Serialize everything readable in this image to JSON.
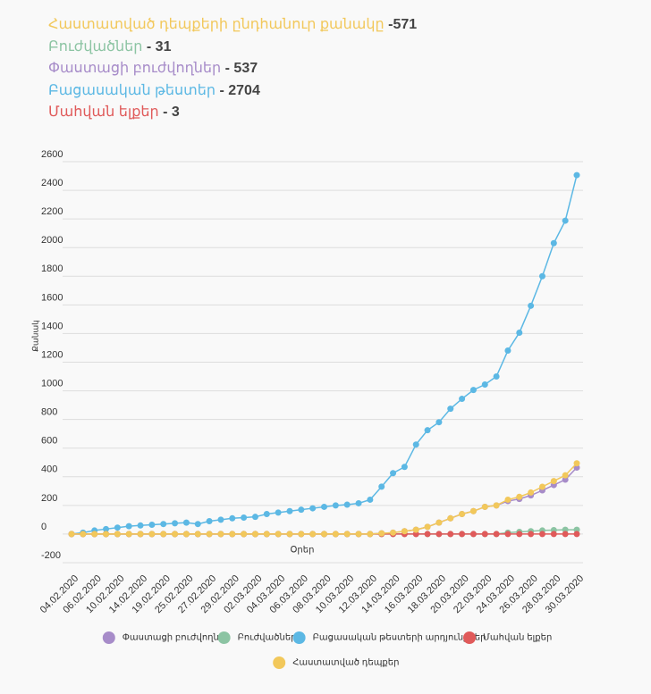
{
  "stats": [
    {
      "label": "Հաստատված դեպքերի ընդհանուր քանակը",
      "value": "-571",
      "color": "#f2c85b"
    },
    {
      "label": "Բուժվածներ",
      "value": "- 31",
      "color": "#8cc4a3"
    },
    {
      "label": "Փաստացի բուժվողներ",
      "value": "- 537",
      "color": "#a78cc9"
    },
    {
      "label": "Բացասական թեստեր",
      "value": "- 2704",
      "color": "#5cb8e4"
    },
    {
      "label": "Մահվան ելքեր",
      "value": "- 3",
      "color": "#e05a5a"
    }
  ],
  "chart_data": {
    "type": "line",
    "y_label": "Քանակ",
    "x_label": "Օրեր",
    "categories": [
      "04.02.2020",
      null,
      "06.02.2020",
      null,
      "10.02.2020",
      null,
      "14.02.2020",
      null,
      "19.02.2020",
      null,
      "25.02.2020",
      null,
      "27.02.2020",
      null,
      "29.02.2020",
      null,
      "02.03.2020",
      null,
      "04.03.2020",
      null,
      "06.03.2020",
      null,
      "08.03.2020",
      null,
      "10.03.2020",
      null,
      "12.03.2020",
      null,
      "14.03.2020",
      null,
      "16.03.2020",
      null,
      "18.03.2020",
      null,
      "20.03.2020",
      null,
      "22.03.2020",
      null,
      "24.03.2020",
      null,
      "26.03.2020",
      null,
      "28.03.2020",
      null,
      "30.03.2020"
    ],
    "ylim": [
      -200,
      2600
    ],
    "yticks": [
      -200,
      0,
      200,
      400,
      600,
      800,
      1000,
      1200,
      1400,
      1600,
      1800,
      2000,
      2200,
      2400,
      2600
    ],
    "grid": true,
    "series": [
      {
        "name": "Փաստացի բուժվողներ",
        "color": "#a78cc9",
        "values": [
          0,
          0,
          0,
          0,
          0,
          0,
          0,
          0,
          0,
          0,
          0,
          0,
          0,
          0,
          0,
          0,
          0,
          0,
          0,
          0,
          0,
          0,
          0,
          0,
          0,
          0,
          0,
          5,
          10,
          20,
          30,
          50,
          80,
          110,
          140,
          160,
          190,
          200,
          230,
          245,
          270,
          305,
          342,
          380,
          464
        ]
      },
      {
        "name": "Բուժվածներ",
        "color": "#8cc4a3",
        "values": [
          0,
          0,
          0,
          0,
          0,
          0,
          0,
          0,
          0,
          0,
          0,
          0,
          0,
          0,
          0,
          0,
          0,
          0,
          0,
          0,
          0,
          0,
          0,
          0,
          0,
          0,
          0,
          0,
          0,
          0,
          0,
          0,
          0,
          0,
          0,
          0,
          0,
          0,
          10,
          15,
          20,
          25,
          28,
          30,
          30
        ]
      },
      {
        "name": "Բացասական թեստերի արդյունքներ",
        "color": "#5cb8e4",
        "values": [
          0,
          10,
          25,
          35,
          45,
          55,
          60,
          65,
          70,
          75,
          80,
          70,
          90,
          100,
          110,
          115,
          120,
          140,
          150,
          160,
          170,
          180,
          190,
          200,
          205,
          215,
          240,
          331,
          425,
          469,
          625,
          725,
          781,
          875,
          944,
          1006,
          1044,
          1100,
          1281,
          1406,
          1594,
          1800,
          2031,
          2188,
          2506
        ]
      },
      {
        "name": "Մահվան ելքեր",
        "color": "#e05a5a",
        "values": [
          0,
          0,
          0,
          0,
          0,
          0,
          0,
          0,
          0,
          0,
          0,
          0,
          0,
          0,
          0,
          0,
          0,
          0,
          0,
          0,
          0,
          0,
          0,
          0,
          0,
          0,
          0,
          0,
          0,
          0,
          0,
          0,
          0,
          0,
          0,
          0,
          0,
          0,
          0,
          0,
          0,
          0,
          0,
          0,
          0
        ]
      },
      {
        "name": "Հաստատված դեպքեր",
        "color": "#f2c85b",
        "values": [
          0,
          0,
          0,
          0,
          0,
          0,
          0,
          0,
          0,
          0,
          0,
          0,
          0,
          0,
          0,
          0,
          0,
          0,
          0,
          0,
          0,
          0,
          0,
          0,
          0,
          0,
          0,
          5,
          10,
          20,
          30,
          50,
          80,
          110,
          140,
          160,
          190,
          200,
          240,
          260,
          290,
          330,
          370,
          410,
          494
        ]
      }
    ]
  }
}
